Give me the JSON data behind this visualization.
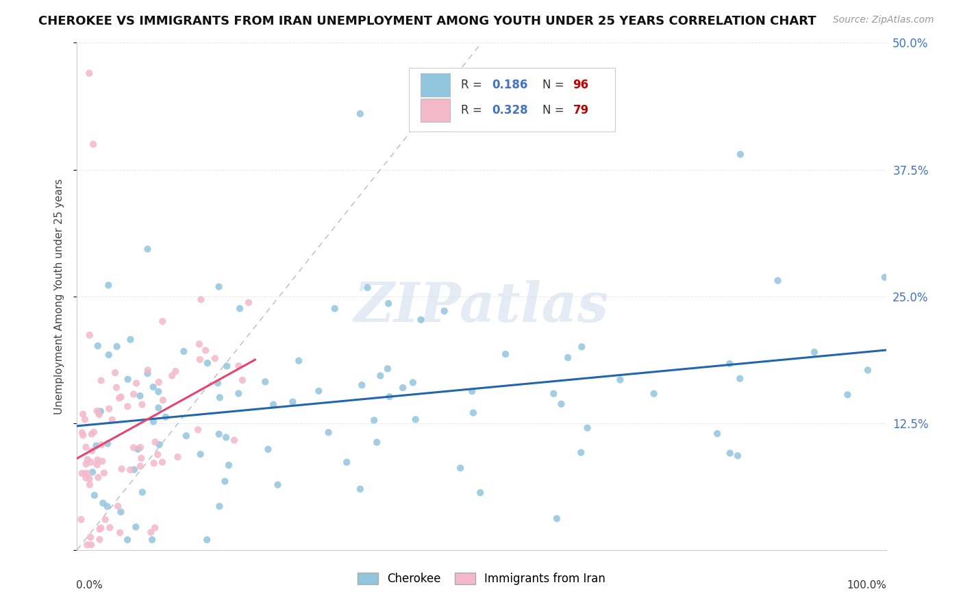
{
  "title": "CHEROKEE VS IMMIGRANTS FROM IRAN UNEMPLOYMENT AMONG YOUTH UNDER 25 YEARS CORRELATION CHART",
  "source": "Source: ZipAtlas.com",
  "ylabel": "Unemployment Among Youth under 25 years",
  "y_ticks": [
    0.0,
    0.125,
    0.25,
    0.375,
    0.5
  ],
  "y_tick_labels": [
    "",
    "12.5%",
    "25.0%",
    "37.5%",
    "50.0%"
  ],
  "x_range": [
    0,
    1.0
  ],
  "y_range": [
    0,
    0.5
  ],
  "cherokee_R": 0.186,
  "cherokee_N": 96,
  "iran_R": 0.328,
  "iran_N": 79,
  "cherokee_color": "#92c5de",
  "iran_color": "#f4b8cb",
  "cherokee_line_color": "#2166ac",
  "iran_line_color": "#e8436e",
  "diagonal_color": "#bbbbbb",
  "watermark": "ZIPatlas",
  "background_color": "#ffffff",
  "title_fontsize": 13,
  "source_fontsize": 10,
  "tick_fontsize": 12,
  "ylabel_fontsize": 11
}
